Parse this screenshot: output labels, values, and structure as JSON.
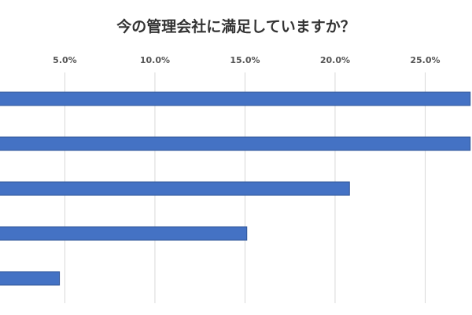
{
  "chart_data": {
    "type": "bar",
    "orientation": "horizontal",
    "title": "今の管理会社に満足していますか？",
    "xlabel": "",
    "ylabel": "",
    "categories": [
      "",
      "",
      "",
      "",
      ""
    ],
    "values": [
      27.5,
      27.5,
      20.8,
      15.1,
      4.7
    ],
    "xlim": [
      1.4,
      27.6
    ],
    "x_ticks": [
      5.0,
      10.0,
      15.0,
      20.0,
      25.0
    ],
    "x_tick_labels": [
      "5.0%",
      "10.0%",
      "15.0%",
      "20.0%",
      "25.0%"
    ],
    "grid": true,
    "legend": "none",
    "colors": {
      "bar": "#4472c4",
      "bar_border": "#2f5597",
      "grid": "#d9d9d9"
    }
  }
}
